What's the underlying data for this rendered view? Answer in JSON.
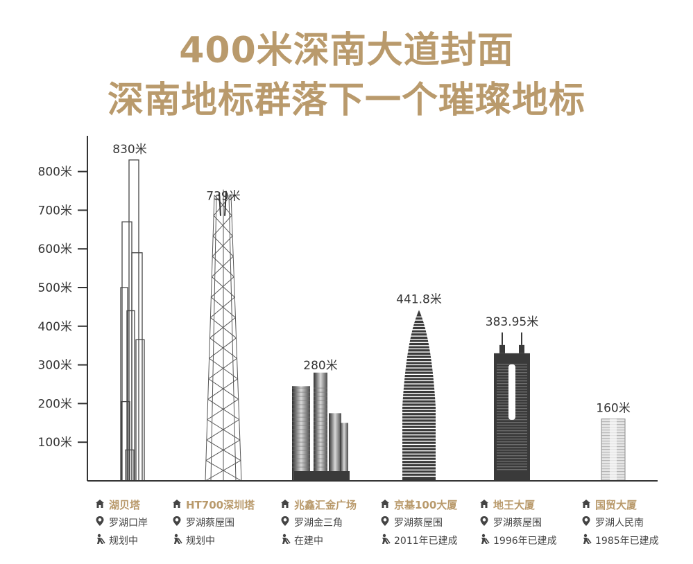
{
  "title_line1": "400米深南大道封面",
  "title_line2": "深南地标群落下一个璀璨地标",
  "colors": {
    "accent": "#b99a6c",
    "axis": "#333333",
    "building_dark": "#3a3a3a"
  },
  "chart_data": {
    "type": "bar",
    "ylim": [
      0,
      900
    ],
    "yticks": [
      {
        "value": 100,
        "label": "100米"
      },
      {
        "value": 200,
        "label": "200米"
      },
      {
        "value": 300,
        "label": "300米"
      },
      {
        "value": 400,
        "label": "400米"
      },
      {
        "value": 500,
        "label": "500米"
      },
      {
        "value": 600,
        "label": "600米"
      },
      {
        "value": 700,
        "label": "700米"
      },
      {
        "value": 800,
        "label": "800米"
      }
    ],
    "series": [
      {
        "label": "830米",
        "value": 830
      },
      {
        "label": "739米",
        "value": 739
      },
      {
        "label": "280米",
        "value": 280
      },
      {
        "label": "441.8米",
        "value": 441.8
      },
      {
        "label": "383.95米",
        "value": 383.95
      },
      {
        "label": "160米",
        "value": 160
      }
    ]
  },
  "buildings": [
    {
      "name": "湖贝塔",
      "location": "罗湖口岸",
      "status": "规划中"
    },
    {
      "name": "HT700深圳塔",
      "location": "罗湖蔡屋围",
      "status": "规划中"
    },
    {
      "name": "兆鑫汇金广场",
      "location": "罗湖金三角",
      "status": "在建中"
    },
    {
      "name": "京基100大厦",
      "location": "罗湖蔡屋围",
      "status": "2011年已建成"
    },
    {
      "name": "地王大厦",
      "location": "罗湖蔡屋围",
      "status": "1996年已建成"
    },
    {
      "name": "国贸大厦",
      "location": "罗湖人民南",
      "status": "1985年已建成"
    }
  ],
  "icons": {
    "name": "house-icon",
    "location": "pin-icon",
    "status": "worker-icon"
  }
}
